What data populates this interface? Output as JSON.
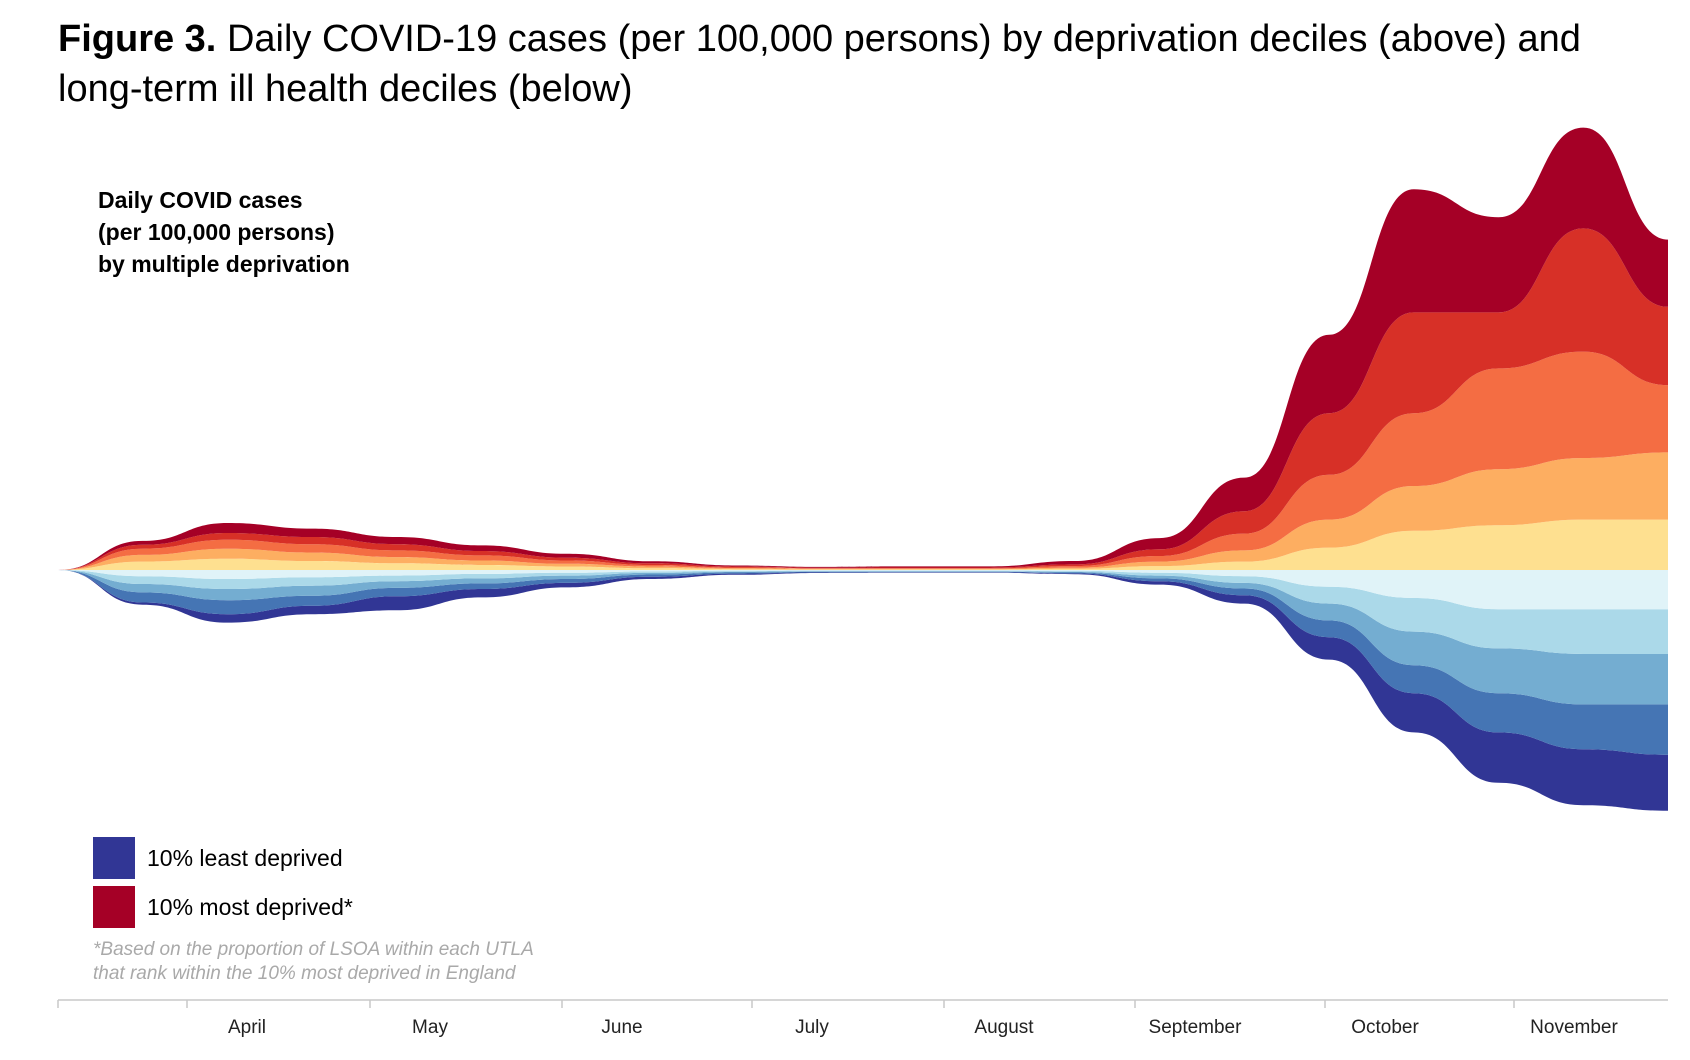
{
  "figure": {
    "number": "Figure 3.",
    "caption": "Daily COVID-19 cases (per 100,000 persons) by deprivation deciles (above) and long-term ill health deciles (below)"
  },
  "chart_data": {
    "type": "area",
    "subtype": "streamgraph",
    "title_lines": [
      "Daily COVID cases",
      "(per 100,000 persons)",
      "by multiple deprivation"
    ],
    "x_tick_labels": [
      "April",
      "May",
      "June",
      "July",
      "August",
      "September",
      "October",
      "November"
    ],
    "legend": [
      {
        "label": "10% least deprived",
        "color": "#313695"
      },
      {
        "label": "10% most deprived*",
        "color": "#a50026"
      }
    ],
    "footnote_lines": [
      "*Based on the proportion of LSOA within each UTLA",
      "that rank within the 10% most deprived in England"
    ],
    "grid": false,
    "series_order_bottom_to_top": "least deprived to most deprived",
    "series": [
      {
        "name": "",
        "color": "#313695",
        "values": [
          0,
          0.4,
          1.5,
          1.5,
          2.5,
          1.5,
          0.8,
          0.4,
          0.2,
          0.12,
          0.1,
          0.1,
          0.15,
          0.6,
          1.5,
          4,
          7,
          9,
          10,
          10
        ]
      },
      {
        "name": "",
        "color": "#4575b4",
        "values": [
          0,
          1.8,
          2.5,
          1.8,
          1.5,
          1,
          0.7,
          0.4,
          0.2,
          0.12,
          0.1,
          0.1,
          0.15,
          0.5,
          1.2,
          3,
          5,
          7,
          8,
          9
        ]
      },
      {
        "name": "",
        "color": "#74add1",
        "values": [
          0,
          1.5,
          2,
          1.8,
          1.2,
          0.9,
          0.6,
          0.3,
          0.15,
          0.1,
          0.1,
          0.1,
          0.15,
          0.5,
          1,
          3,
          6,
          8,
          9,
          9
        ]
      },
      {
        "name": "",
        "color": "#abd9e9",
        "values": [
          0,
          1.4,
          1.8,
          1.5,
          1,
          0.8,
          0.5,
          0.25,
          0.15,
          0.1,
          0.1,
          0.1,
          0.15,
          0.5,
          1.2,
          3,
          6,
          7,
          8,
          8
        ]
      },
      {
        "name": "",
        "color": "#e0f3f8",
        "values": [
          0,
          1.1,
          1.6,
          1.3,
          1,
          0.7,
          0.5,
          0.25,
          0.15,
          0.1,
          0.1,
          0.1,
          0.15,
          0.5,
          1.1,
          3,
          5,
          7,
          7,
          7
        ]
      },
      {
        "name": "",
        "color": "#fee090",
        "values": [
          0,
          1.5,
          2,
          1.6,
          1.2,
          0.9,
          0.6,
          0.3,
          0.15,
          0.1,
          0.1,
          0.1,
          0.2,
          0.7,
          1.5,
          4,
          7,
          8,
          9,
          9
        ]
      },
      {
        "name": "",
        "color": "#fdae61",
        "values": [
          0,
          1.2,
          1.8,
          1.5,
          1.1,
          0.8,
          0.5,
          0.3,
          0.15,
          0.1,
          0.1,
          0.1,
          0.2,
          0.8,
          2,
          5,
          8,
          10,
          11,
          12
        ]
      },
      {
        "name": "",
        "color": "#f46d43",
        "values": [
          0,
          1.1,
          1.6,
          1.5,
          1.2,
          0.9,
          0.6,
          0.3,
          0.15,
          0.1,
          0.1,
          0.1,
          0.3,
          1,
          3,
          8,
          13,
          18,
          19,
          12
        ]
      },
      {
        "name": "",
        "color": "#d73027",
        "values": [
          0,
          0.7,
          1.2,
          1.3,
          1.1,
          0.8,
          0.5,
          0.3,
          0.15,
          0.1,
          0.15,
          0.15,
          0.3,
          1.2,
          4,
          11,
          18,
          10,
          22,
          14
        ]
      },
      {
        "name": "",
        "color": "#a50026",
        "values": [
          0,
          0.7,
          1.8,
          1.5,
          1.3,
          1,
          0.7,
          0.35,
          0.2,
          0.15,
          0.2,
          0.2,
          0.6,
          2,
          6,
          14,
          22,
          17,
          18,
          12
        ]
      }
    ]
  }
}
